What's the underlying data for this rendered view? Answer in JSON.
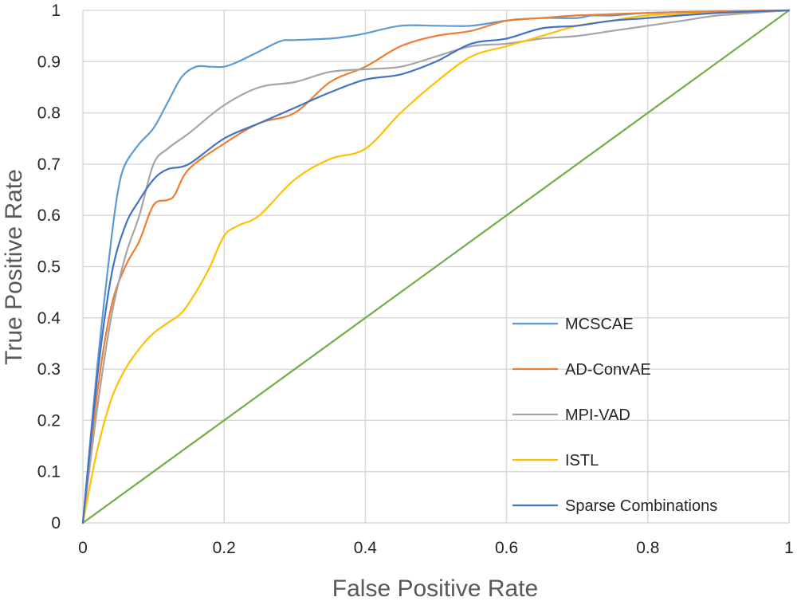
{
  "chart_data": {
    "type": "line",
    "title": "",
    "xlabel": "False Positive Rate",
    "ylabel": "True Positive Rate",
    "xlim": [
      0,
      1
    ],
    "ylim": [
      0,
      1
    ],
    "xticks": [
      "0",
      "0.2",
      "0.4",
      "0.6",
      "0.8",
      "1"
    ],
    "xtick_values": [
      0,
      0.2,
      0.4,
      0.6,
      0.8,
      1
    ],
    "yticks": [
      "0",
      "0.1",
      "0.2",
      "0.3",
      "0.4",
      "0.5",
      "0.6",
      "0.7",
      "0.8",
      "0.9",
      "1"
    ],
    "ytick_values": [
      0,
      0.1,
      0.2,
      0.3,
      0.4,
      0.5,
      0.6,
      0.7,
      0.8,
      0.9,
      1
    ],
    "grid": true,
    "legend_position": "bottom-right",
    "series": [
      {
        "name": "MCSCAE",
        "color": "#5b9bd5",
        "x": [
          0,
          0.02,
          0.04,
          0.05,
          0.06,
          0.08,
          0.1,
          0.12,
          0.14,
          0.16,
          0.18,
          0.2,
          0.22,
          0.25,
          0.28,
          0.3,
          0.35,
          0.38,
          0.4,
          0.45,
          0.5,
          0.55,
          0.6,
          0.65,
          0.7,
          0.72,
          0.75,
          0.8,
          0.9,
          1.0
        ],
        "y": [
          0,
          0.3,
          0.55,
          0.65,
          0.7,
          0.74,
          0.77,
          0.82,
          0.87,
          0.89,
          0.89,
          0.89,
          0.9,
          0.92,
          0.94,
          0.942,
          0.945,
          0.95,
          0.955,
          0.97,
          0.97,
          0.97,
          0.98,
          0.985,
          0.985,
          0.99,
          0.99,
          0.995,
          0.998,
          1.0
        ]
      },
      {
        "name": "AD-ConvAE",
        "color": "#ed7d31",
        "x": [
          0,
          0.02,
          0.04,
          0.06,
          0.08,
          0.1,
          0.12,
          0.13,
          0.15,
          0.2,
          0.25,
          0.3,
          0.35,
          0.4,
          0.45,
          0.5,
          0.55,
          0.6,
          0.65,
          0.7,
          0.8,
          0.9,
          1.0
        ],
        "y": [
          0,
          0.25,
          0.42,
          0.5,
          0.55,
          0.62,
          0.63,
          0.64,
          0.69,
          0.74,
          0.78,
          0.8,
          0.86,
          0.89,
          0.93,
          0.95,
          0.96,
          0.98,
          0.985,
          0.99,
          0.995,
          0.998,
          1.0
        ]
      },
      {
        "name": "MPI-VAD",
        "color": "#a5a5a5",
        "x": [
          0,
          0.02,
          0.04,
          0.06,
          0.08,
          0.1,
          0.12,
          0.15,
          0.2,
          0.25,
          0.3,
          0.35,
          0.4,
          0.45,
          0.5,
          0.55,
          0.6,
          0.65,
          0.7,
          0.75,
          0.8,
          0.85,
          0.9,
          1.0
        ],
        "y": [
          0,
          0.22,
          0.4,
          0.52,
          0.6,
          0.7,
          0.73,
          0.76,
          0.815,
          0.85,
          0.86,
          0.88,
          0.885,
          0.89,
          0.91,
          0.93,
          0.935,
          0.945,
          0.95,
          0.96,
          0.97,
          0.98,
          0.99,
          1.0
        ]
      },
      {
        "name": "ISTL",
        "color": "#ffc000",
        "x": [
          0,
          0.02,
          0.04,
          0.06,
          0.08,
          0.1,
          0.12,
          0.14,
          0.16,
          0.18,
          0.2,
          0.22,
          0.25,
          0.3,
          0.35,
          0.4,
          0.45,
          0.5,
          0.55,
          0.6,
          0.65,
          0.7,
          0.75,
          0.8,
          0.9,
          1.0
        ],
        "y": [
          0,
          0.14,
          0.24,
          0.3,
          0.34,
          0.37,
          0.39,
          0.41,
          0.45,
          0.5,
          0.56,
          0.58,
          0.6,
          0.67,
          0.71,
          0.73,
          0.8,
          0.86,
          0.91,
          0.93,
          0.95,
          0.97,
          0.98,
          0.99,
          0.995,
          1.0
        ]
      },
      {
        "name": "Sparse Combinations",
        "color": "#4472c4",
        "x": [
          0,
          0.02,
          0.04,
          0.06,
          0.08,
          0.1,
          0.12,
          0.15,
          0.2,
          0.25,
          0.3,
          0.35,
          0.4,
          0.45,
          0.5,
          0.55,
          0.6,
          0.65,
          0.7,
          0.75,
          0.8,
          0.9,
          1.0
        ],
        "y": [
          0,
          0.28,
          0.48,
          0.58,
          0.63,
          0.67,
          0.69,
          0.7,
          0.75,
          0.78,
          0.81,
          0.84,
          0.865,
          0.875,
          0.9,
          0.935,
          0.945,
          0.965,
          0.97,
          0.98,
          0.985,
          0.995,
          1.0
        ]
      },
      {
        "name": "",
        "color": "#70ad47",
        "x": [
          0,
          1.0
        ],
        "y": [
          0,
          1.0
        ]
      }
    ]
  }
}
